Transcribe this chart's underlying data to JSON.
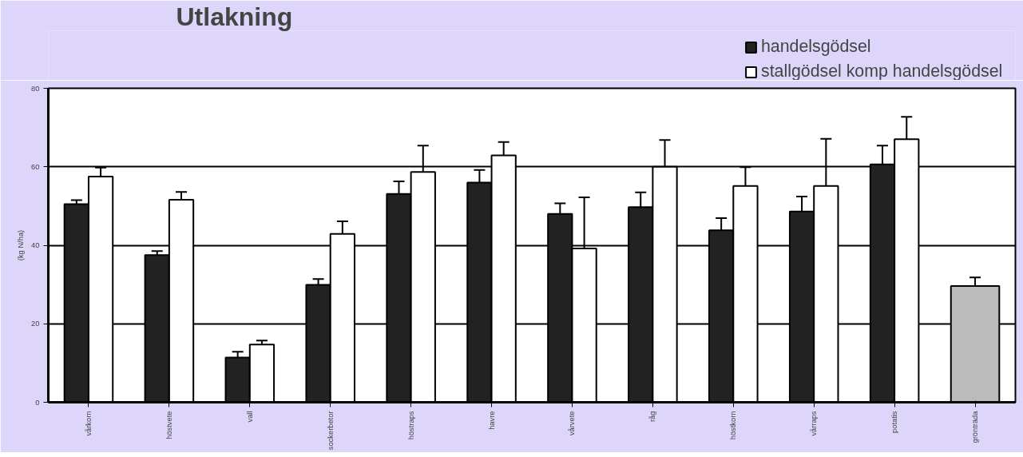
{
  "chart_data": {
    "type": "bar",
    "title": "Utlakning",
    "ylabel": "(kg N/ha)",
    "categories": [
      "vårkorn",
      "höstvete",
      "vall",
      "sockerbetor",
      "höstraps",
      "havre",
      "vårvete",
      "råg",
      "höstkorn",
      "vårraps",
      "potatis",
      "grönträda"
    ],
    "series": [
      {
        "name": "handelsgödsel",
        "color": "#222222",
        "values": [
          50.5,
          37.5,
          11.4,
          29.9,
          53.1,
          56,
          48,
          49.7,
          43.8,
          48.6,
          60.6,
          null
        ],
        "errors": [
          1,
          1,
          1.5,
          1.5,
          3.2,
          3.2,
          2.7,
          3.8,
          3.1,
          3.8,
          4.8,
          null
        ]
      },
      {
        "name": "stallgödsel komp handelsgödsel",
        "color": "#ffffff",
        "values": [
          57.5,
          51.6,
          14.7,
          42.9,
          58.7,
          62.9,
          39.2,
          60,
          55.1,
          55.1,
          67,
          null
        ],
        "errors": [
          2.3,
          2,
          1,
          3.2,
          6.7,
          3.4,
          13,
          6.8,
          4.8,
          12,
          5.7,
          null
        ]
      },
      {
        "color": "#bbbbbb",
        "values": [
          null,
          null,
          null,
          null,
          null,
          null,
          null,
          null,
          null,
          null,
          null,
          29.6
        ],
        "errors": [
          null,
          null,
          null,
          null,
          null,
          null,
          null,
          null,
          null,
          null,
          null,
          2.2
        ]
      }
    ],
    "ylim": [
      0,
      80
    ],
    "yticks": [
      0,
      20,
      40,
      60,
      80
    ],
    "grid": "y",
    "legend": "top right"
  }
}
